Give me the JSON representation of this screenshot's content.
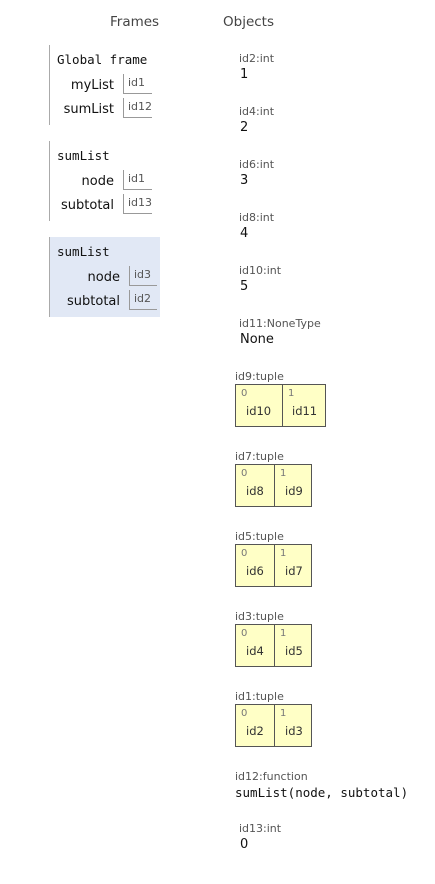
{
  "headers": {
    "frames": "Frames",
    "objects": "Objects"
  },
  "frames": [
    {
      "name": "Global frame",
      "vars": [
        {
          "name": "myList",
          "ref": "id1"
        },
        {
          "name": "sumList",
          "ref": "id12"
        }
      ]
    },
    {
      "name": "sumList",
      "vars": [
        {
          "name": "node",
          "ref": "id1"
        },
        {
          "name": "subtotal",
          "ref": "id13"
        }
      ]
    },
    {
      "name": "sumList",
      "vars": [
        {
          "name": "node",
          "ref": "id3"
        },
        {
          "name": "subtotal",
          "ref": "id2"
        }
      ]
    }
  ],
  "objects": {
    "id2": {
      "type": "id2:int",
      "value": "1"
    },
    "id4": {
      "type": "id4:int",
      "value": "2"
    },
    "id6": {
      "type": "id6:int",
      "value": "3"
    },
    "id8": {
      "type": "id8:int",
      "value": "4"
    },
    "id10": {
      "type": "id10:int",
      "value": "5"
    },
    "id11": {
      "type": "id11:NoneType",
      "value": "None"
    },
    "id9": {
      "type": "id9:tuple",
      "cells": [
        {
          "index": "0",
          "value": "id10"
        },
        {
          "index": "1",
          "value": "id11"
        }
      ]
    },
    "id7": {
      "type": "id7:tuple",
      "cells": [
        {
          "index": "0",
          "value": "id8"
        },
        {
          "index": "1",
          "value": "id9"
        }
      ]
    },
    "id5": {
      "type": "id5:tuple",
      "cells": [
        {
          "index": "0",
          "value": "id6"
        },
        {
          "index": "1",
          "value": "id7"
        }
      ]
    },
    "id3": {
      "type": "id3:tuple",
      "cells": [
        {
          "index": "0",
          "value": "id4"
        },
        {
          "index": "1",
          "value": "id5"
        }
      ]
    },
    "id1": {
      "type": "id1:tuple",
      "cells": [
        {
          "index": "0",
          "value": "id2"
        },
        {
          "index": "1",
          "value": "id3"
        }
      ]
    },
    "id12": {
      "type": "id12:function",
      "value": "sumList(node, subtotal)"
    },
    "id13": {
      "type": "id13:int",
      "value": "0"
    }
  }
}
